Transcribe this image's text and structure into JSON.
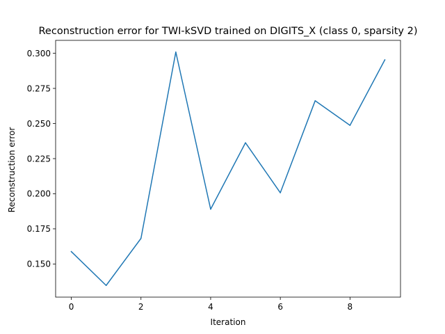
{
  "chart_data": {
    "type": "line",
    "title": "Reconstruction error for TWI-kSVD trained on DIGITS_X (class 0, sparsity 2)",
    "xlabel": "Iteration",
    "ylabel": "Reconstruction error",
    "x": [
      0,
      1,
      2,
      3,
      4,
      5,
      6,
      7,
      8,
      9
    ],
    "series": [
      {
        "values": [
          0.1588,
          0.1347,
          0.1682,
          0.3009,
          0.189,
          0.2363,
          0.2007,
          0.2662,
          0.2487,
          0.2953
        ],
        "color": "#1f77b4"
      }
    ],
    "xlim": [
      -0.45,
      9.45
    ],
    "ylim": [
      0.1264,
      0.3092
    ],
    "x_ticks": [
      0,
      2,
      4,
      6,
      8
    ],
    "x_tick_labels": [
      "0",
      "2",
      "4",
      "6",
      "8"
    ],
    "y_ticks": [
      0.15,
      0.175,
      0.2,
      0.225,
      0.25,
      0.275,
      0.3
    ],
    "y_tick_labels": [
      "0.150",
      "0.175",
      "0.200",
      "0.225",
      "0.250",
      "0.275",
      "0.300"
    ],
    "grid": false,
    "legend": "none"
  }
}
